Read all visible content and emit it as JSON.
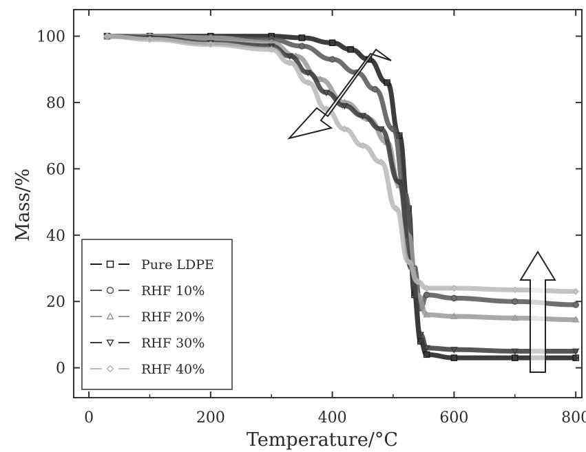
{
  "chart_data": {
    "type": "line",
    "title": "",
    "xlabel": "Temperature/°C",
    "ylabel": "Mass/%",
    "xlim": [
      -25,
      810
    ],
    "ylim": [
      -9,
      108
    ],
    "xticks": [
      0,
      200,
      400,
      600,
      800
    ],
    "yticks": [
      0,
      20,
      40,
      60,
      80,
      100
    ],
    "grid": false,
    "legend_position": "bottom-left",
    "series": [
      {
        "name": "Pure LDPE",
        "color": "#1a1a1a",
        "marker": "square",
        "x": [
          30,
          100,
          200,
          300,
          350,
          400,
          430,
          460,
          490,
          510,
          525,
          535,
          545,
          555,
          600,
          700,
          800
        ],
        "y": [
          100,
          100,
          100,
          100,
          99.5,
          98,
          96,
          93,
          86,
          70,
          48,
          22,
          8,
          4,
          3,
          3,
          3
        ]
      },
      {
        "name": "RHF 10%",
        "color": "#555555",
        "marker": "circle",
        "x": [
          30,
          100,
          200,
          300,
          350,
          400,
          440,
          470,
          500,
          520,
          535,
          545,
          555,
          600,
          700,
          800
        ],
        "y": [
          100,
          100,
          99.5,
          99,
          97,
          93,
          89,
          84,
          72,
          52,
          30,
          18,
          22,
          21,
          20,
          19
        ]
      },
      {
        "name": "RHF 20%",
        "color": "#9a9a9a",
        "marker": "triangle-up",
        "x": [
          30,
          100,
          200,
          300,
          340,
          380,
          420,
          460,
          490,
          510,
          525,
          540,
          555,
          600,
          700,
          800
        ],
        "y": [
          100,
          100,
          99.5,
          98,
          94,
          87,
          80,
          75,
          68,
          55,
          40,
          22,
          16,
          15.5,
          15,
          14.5
        ]
      },
      {
        "name": "RHF 30%",
        "color": "#3a3a3a",
        "marker": "triangle-down",
        "x": [
          30,
          100,
          200,
          300,
          330,
          360,
          390,
          420,
          450,
          480,
          510,
          530,
          545,
          555,
          600,
          700,
          800
        ],
        "y": [
          100,
          99.5,
          98,
          97,
          94,
          89,
          83,
          79,
          76,
          72,
          56,
          30,
          10,
          6,
          5.5,
          5,
          5
        ]
      },
      {
        "name": "RHF 40%",
        "color": "#b8b8b8",
        "marker": "diamond",
        "x": [
          30,
          100,
          200,
          300,
          330,
          360,
          390,
          420,
          450,
          480,
          505,
          525,
          540,
          555,
          600,
          700,
          800
        ],
        "y": [
          100,
          99,
          97.5,
          96,
          92,
          86,
          78,
          72,
          67,
          62,
          48,
          32,
          26,
          24,
          24,
          23.5,
          23
        ]
      }
    ]
  }
}
